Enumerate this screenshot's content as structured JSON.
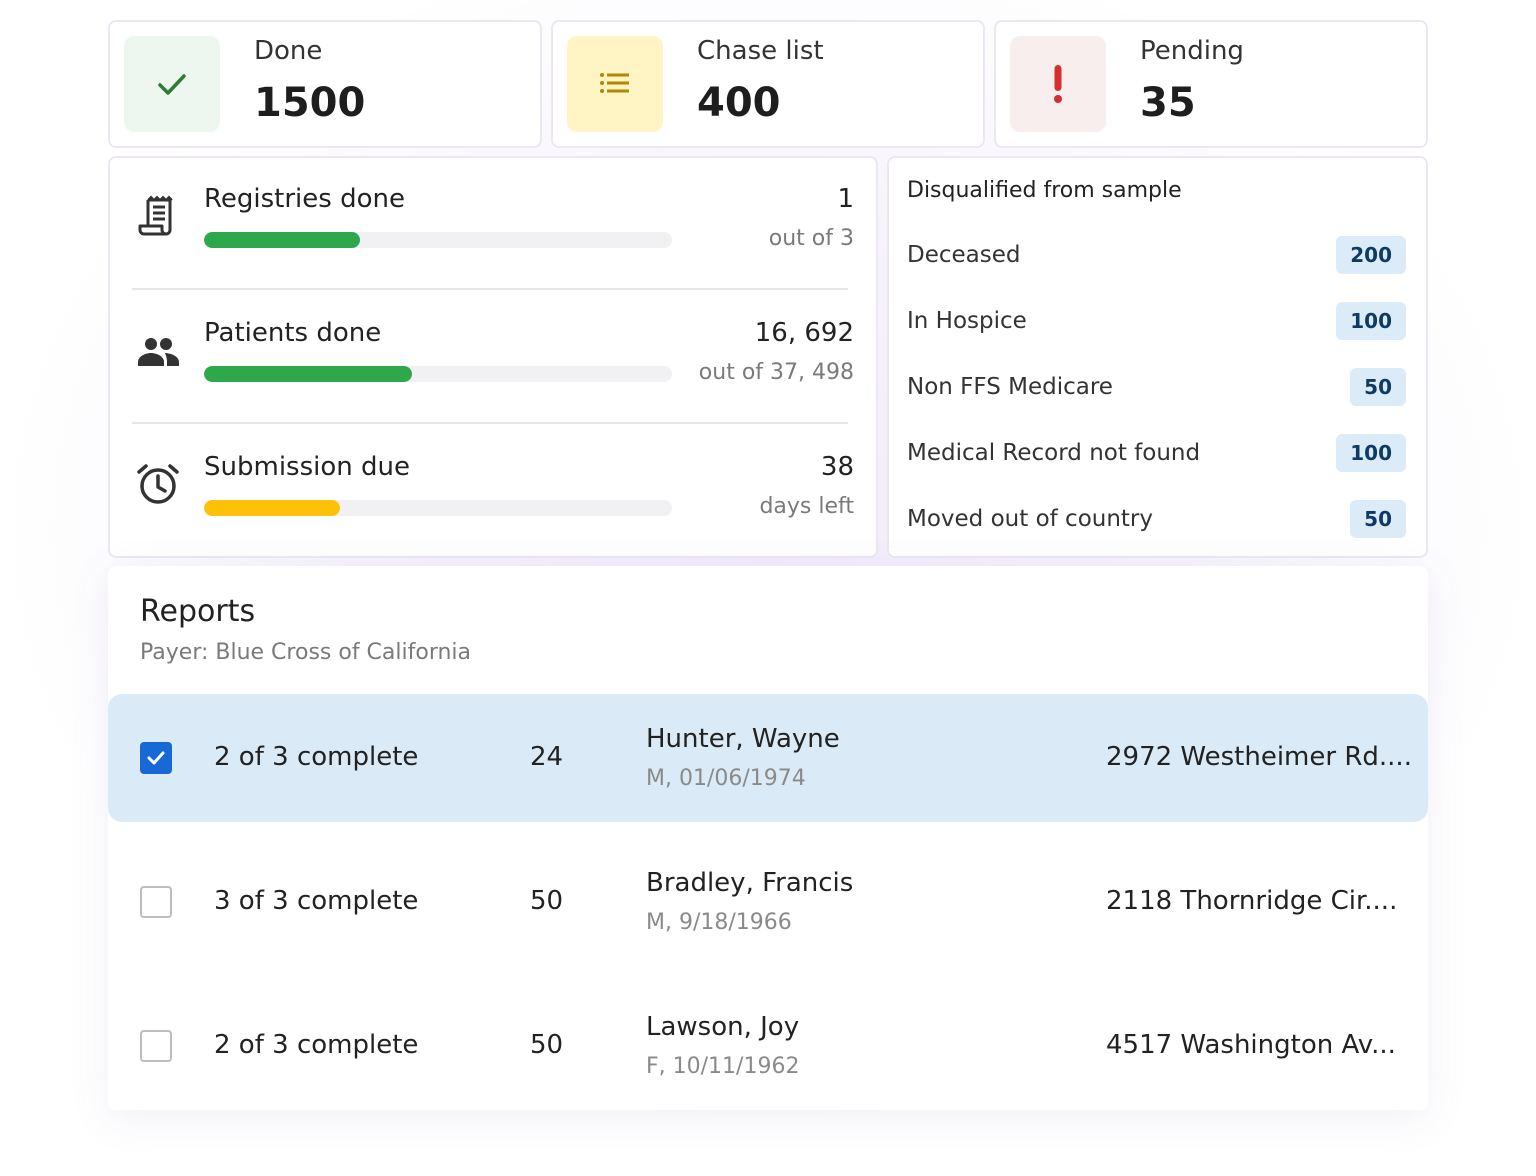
{
  "stats": [
    {
      "label": "Done",
      "value": "1500",
      "icon": "check-icon",
      "bg": "#edf6ef",
      "color": "#2e7d32"
    },
    {
      "label": "Chase list",
      "value": "400",
      "icon": "list-icon",
      "bg": "#fff4c4",
      "color": "#b08900"
    },
    {
      "label": "Pending",
      "value": "35",
      "icon": "exclamation-icon",
      "bg": "#f8eeee",
      "color": "#d32f2f"
    }
  ],
  "progress": [
    {
      "title": "Registries done",
      "value": "1",
      "sub": "out of 3",
      "fraction": 0.3333,
      "color": "#2ea84a",
      "icon": "registry-icon"
    },
    {
      "title": "Patients done",
      "value": "16, 692",
      "sub": "out of 37, 498",
      "fraction": 0.4451,
      "color": "#2ea84a",
      "icon": "people-icon"
    },
    {
      "title": "Submission due",
      "value": "38",
      "sub": "days left",
      "fraction": 0.29,
      "color": "#ffc107",
      "icon": "alarm-clock-icon"
    }
  ],
  "disqualified": {
    "title": "Disqualified from sample",
    "items": [
      {
        "label": "Deceased",
        "count": "200"
      },
      {
        "label": "In Hospice",
        "count": "100"
      },
      {
        "label": "Non FFS Medicare",
        "count": "50"
      },
      {
        "label": "Medical Record not found",
        "count": "100"
      },
      {
        "label": "Moved out of country",
        "count": "50"
      }
    ]
  },
  "reports": {
    "title": "Reports",
    "subtitle": "Payer: Blue Cross of California",
    "rows": [
      {
        "checked": true,
        "status": "2 of 3 complete",
        "num": "24",
        "name": "Hunter, Wayne",
        "meta": "M, 01/06/1974",
        "address": "2972 Westheimer Rd...."
      },
      {
        "checked": false,
        "status": "3 of 3 complete",
        "num": "50",
        "name": "Bradley, Francis",
        "meta": "M, 9/18/1966",
        "address": "2118 Thornridge Cir...."
      },
      {
        "checked": false,
        "status": "2 of 3 complete",
        "num": "50",
        "name": "Lawson, Joy",
        "meta": "F, 10/11/1962",
        "address": "4517 Washington Av..."
      }
    ]
  }
}
